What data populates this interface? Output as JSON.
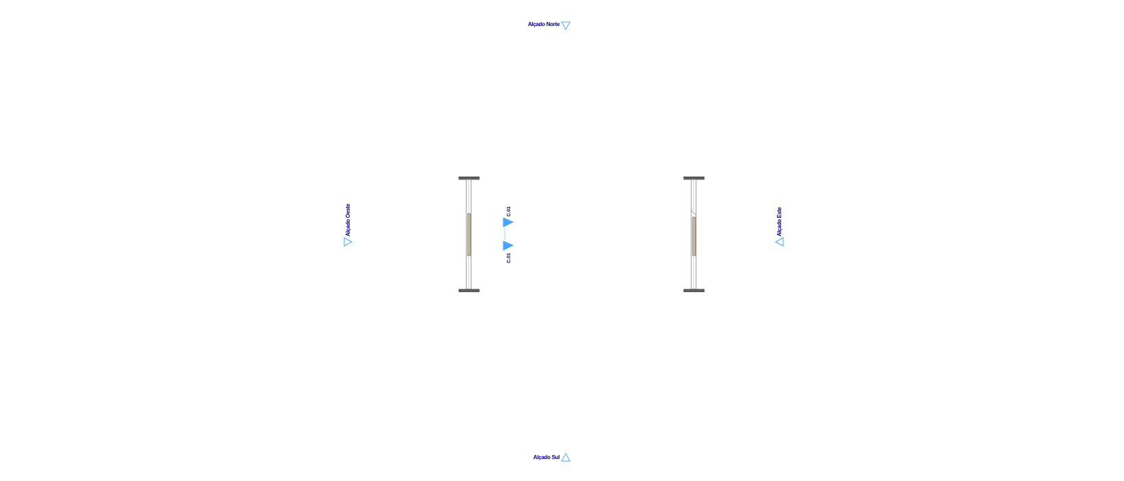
{
  "colors": {
    "label_text": "#000080",
    "marker_outline": "#4aa3ff",
    "marker_fill": "#4aa3ff",
    "wall_stroke": "#7a7a7a",
    "wall_cap": "#555555",
    "panel_fill": "#cfc39a",
    "panel_stroke": "#6b6b6b",
    "section_line": "#4aa3ff"
  },
  "elevations": {
    "north": {
      "label": "Alçado Norte",
      "marker": "triangle-down-outline-icon"
    },
    "south": {
      "label": "Alçado Sul",
      "marker": "triangle-up-outline-icon"
    },
    "west": {
      "label": "Alçado Oeste",
      "marker": "triangle-right-outline-icon"
    },
    "east": {
      "label": "Alçado Este",
      "marker": "triangle-left-outline-icon"
    }
  },
  "sections": {
    "upper": {
      "label": "C.01",
      "marker": "triangle-right-filled-icon"
    },
    "lower": {
      "label": "C.01",
      "marker": "triangle-right-filled-icon"
    }
  },
  "walls": [
    {
      "name": "left-wall",
      "panel": "door-panel"
    },
    {
      "name": "right-wall",
      "panel": "door-panel"
    }
  ]
}
